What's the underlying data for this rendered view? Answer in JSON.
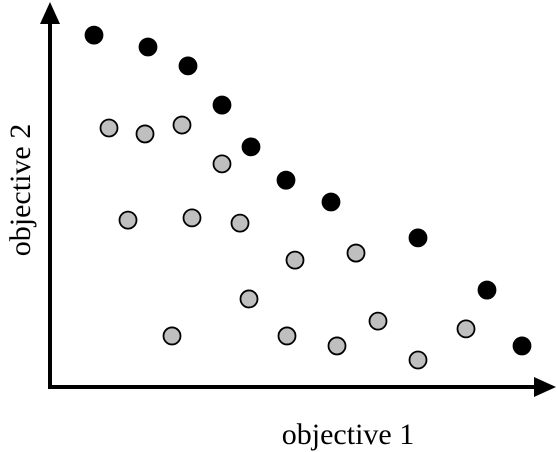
{
  "chart_data": {
    "type": "scatter",
    "xlabel": "objective 1",
    "ylabel": "objective 2",
    "xlim": [
      0,
      100
    ],
    "ylim": [
      0,
      100
    ],
    "series": [
      {
        "color": "#000000",
        "x": [
          8.8,
          19.6,
          27.6,
          34.4,
          40.2,
          47.2,
          56.2,
          73.6,
          87.4,
          94.4
        ],
        "values": [
          95.1,
          91.9,
          86.8,
          76.2,
          64.9,
          55.9,
          50.0,
          40.3,
          26.2,
          11.1
        ]
      },
      {
        "color": "#bfbfbf",
        "x": [
          11.8,
          19.0,
          26.4,
          34.4,
          15.6,
          28.4,
          38.0,
          49.0,
          61.2,
          39.8,
          24.4,
          47.4,
          57.4,
          65.6,
          73.6,
          83.2
        ],
        "values": [
          70.0,
          68.4,
          70.8,
          60.3,
          45.1,
          45.7,
          44.3,
          34.3,
          36.2,
          23.8,
          13.8,
          13.8,
          11.1,
          17.8,
          7.3,
          15.7
        ]
      }
    ]
  }
}
